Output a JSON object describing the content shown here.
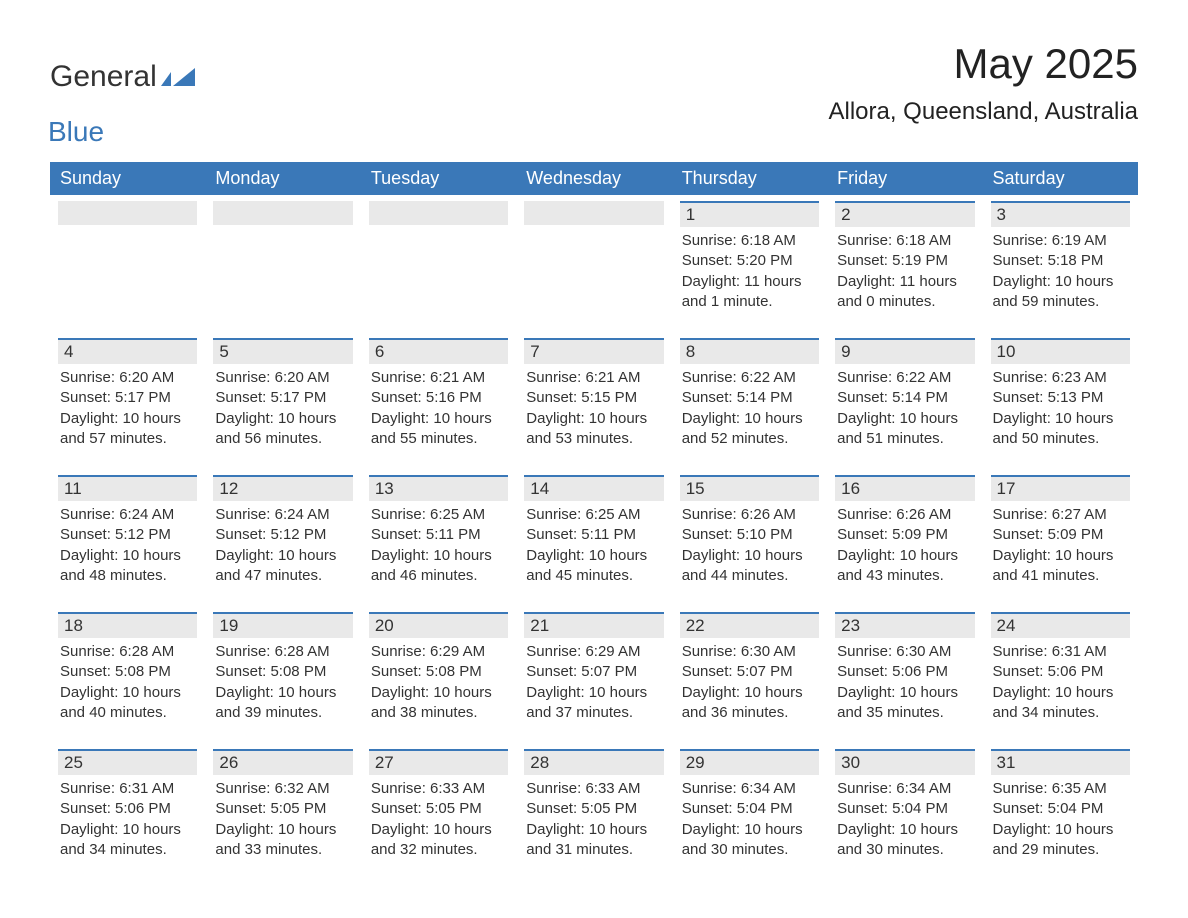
{
  "logo": {
    "part1": "General",
    "part2": "Blue",
    "mark_color": "#3a78b8"
  },
  "title": {
    "month": "May 2025",
    "location": "Allora, Queensland, Australia"
  },
  "colors": {
    "header_bg": "#3a78b8",
    "header_text": "#ffffff",
    "daybar_bg": "#e9e9e9",
    "daybar_border": "#3a78b8",
    "body_text": "#333333",
    "background": "#ffffff"
  },
  "weekdays": [
    "Sunday",
    "Monday",
    "Tuesday",
    "Wednesday",
    "Thursday",
    "Friday",
    "Saturday"
  ],
  "weeks": [
    [
      null,
      null,
      null,
      null,
      {
        "n": "1",
        "sunrise": "Sunrise: 6:18 AM",
        "sunset": "Sunset: 5:20 PM",
        "daylight": "Daylight: 11 hours and 1 minute."
      },
      {
        "n": "2",
        "sunrise": "Sunrise: 6:18 AM",
        "sunset": "Sunset: 5:19 PM",
        "daylight": "Daylight: 11 hours and 0 minutes."
      },
      {
        "n": "3",
        "sunrise": "Sunrise: 6:19 AM",
        "sunset": "Sunset: 5:18 PM",
        "daylight": "Daylight: 10 hours and 59 minutes."
      }
    ],
    [
      {
        "n": "4",
        "sunrise": "Sunrise: 6:20 AM",
        "sunset": "Sunset: 5:17 PM",
        "daylight": "Daylight: 10 hours and 57 minutes."
      },
      {
        "n": "5",
        "sunrise": "Sunrise: 6:20 AM",
        "sunset": "Sunset: 5:17 PM",
        "daylight": "Daylight: 10 hours and 56 minutes."
      },
      {
        "n": "6",
        "sunrise": "Sunrise: 6:21 AM",
        "sunset": "Sunset: 5:16 PM",
        "daylight": "Daylight: 10 hours and 55 minutes."
      },
      {
        "n": "7",
        "sunrise": "Sunrise: 6:21 AM",
        "sunset": "Sunset: 5:15 PM",
        "daylight": "Daylight: 10 hours and 53 minutes."
      },
      {
        "n": "8",
        "sunrise": "Sunrise: 6:22 AM",
        "sunset": "Sunset: 5:14 PM",
        "daylight": "Daylight: 10 hours and 52 minutes."
      },
      {
        "n": "9",
        "sunrise": "Sunrise: 6:22 AM",
        "sunset": "Sunset: 5:14 PM",
        "daylight": "Daylight: 10 hours and 51 minutes."
      },
      {
        "n": "10",
        "sunrise": "Sunrise: 6:23 AM",
        "sunset": "Sunset: 5:13 PM",
        "daylight": "Daylight: 10 hours and 50 minutes."
      }
    ],
    [
      {
        "n": "11",
        "sunrise": "Sunrise: 6:24 AM",
        "sunset": "Sunset: 5:12 PM",
        "daylight": "Daylight: 10 hours and 48 minutes."
      },
      {
        "n": "12",
        "sunrise": "Sunrise: 6:24 AM",
        "sunset": "Sunset: 5:12 PM",
        "daylight": "Daylight: 10 hours and 47 minutes."
      },
      {
        "n": "13",
        "sunrise": "Sunrise: 6:25 AM",
        "sunset": "Sunset: 5:11 PM",
        "daylight": "Daylight: 10 hours and 46 minutes."
      },
      {
        "n": "14",
        "sunrise": "Sunrise: 6:25 AM",
        "sunset": "Sunset: 5:11 PM",
        "daylight": "Daylight: 10 hours and 45 minutes."
      },
      {
        "n": "15",
        "sunrise": "Sunrise: 6:26 AM",
        "sunset": "Sunset: 5:10 PM",
        "daylight": "Daylight: 10 hours and 44 minutes."
      },
      {
        "n": "16",
        "sunrise": "Sunrise: 6:26 AM",
        "sunset": "Sunset: 5:09 PM",
        "daylight": "Daylight: 10 hours and 43 minutes."
      },
      {
        "n": "17",
        "sunrise": "Sunrise: 6:27 AM",
        "sunset": "Sunset: 5:09 PM",
        "daylight": "Daylight: 10 hours and 41 minutes."
      }
    ],
    [
      {
        "n": "18",
        "sunrise": "Sunrise: 6:28 AM",
        "sunset": "Sunset: 5:08 PM",
        "daylight": "Daylight: 10 hours and 40 minutes."
      },
      {
        "n": "19",
        "sunrise": "Sunrise: 6:28 AM",
        "sunset": "Sunset: 5:08 PM",
        "daylight": "Daylight: 10 hours and 39 minutes."
      },
      {
        "n": "20",
        "sunrise": "Sunrise: 6:29 AM",
        "sunset": "Sunset: 5:08 PM",
        "daylight": "Daylight: 10 hours and 38 minutes."
      },
      {
        "n": "21",
        "sunrise": "Sunrise: 6:29 AM",
        "sunset": "Sunset: 5:07 PM",
        "daylight": "Daylight: 10 hours and 37 minutes."
      },
      {
        "n": "22",
        "sunrise": "Sunrise: 6:30 AM",
        "sunset": "Sunset: 5:07 PM",
        "daylight": "Daylight: 10 hours and 36 minutes."
      },
      {
        "n": "23",
        "sunrise": "Sunrise: 6:30 AM",
        "sunset": "Sunset: 5:06 PM",
        "daylight": "Daylight: 10 hours and 35 minutes."
      },
      {
        "n": "24",
        "sunrise": "Sunrise: 6:31 AM",
        "sunset": "Sunset: 5:06 PM",
        "daylight": "Daylight: 10 hours and 34 minutes."
      }
    ],
    [
      {
        "n": "25",
        "sunrise": "Sunrise: 6:31 AM",
        "sunset": "Sunset: 5:06 PM",
        "daylight": "Daylight: 10 hours and 34 minutes."
      },
      {
        "n": "26",
        "sunrise": "Sunrise: 6:32 AM",
        "sunset": "Sunset: 5:05 PM",
        "daylight": "Daylight: 10 hours and 33 minutes."
      },
      {
        "n": "27",
        "sunrise": "Sunrise: 6:33 AM",
        "sunset": "Sunset: 5:05 PM",
        "daylight": "Daylight: 10 hours and 32 minutes."
      },
      {
        "n": "28",
        "sunrise": "Sunrise: 6:33 AM",
        "sunset": "Sunset: 5:05 PM",
        "daylight": "Daylight: 10 hours and 31 minutes."
      },
      {
        "n": "29",
        "sunrise": "Sunrise: 6:34 AM",
        "sunset": "Sunset: 5:04 PM",
        "daylight": "Daylight: 10 hours and 30 minutes."
      },
      {
        "n": "30",
        "sunrise": "Sunrise: 6:34 AM",
        "sunset": "Sunset: 5:04 PM",
        "daylight": "Daylight: 10 hours and 30 minutes."
      },
      {
        "n": "31",
        "sunrise": "Sunrise: 6:35 AM",
        "sunset": "Sunset: 5:04 PM",
        "daylight": "Daylight: 10 hours and 29 minutes."
      }
    ]
  ]
}
